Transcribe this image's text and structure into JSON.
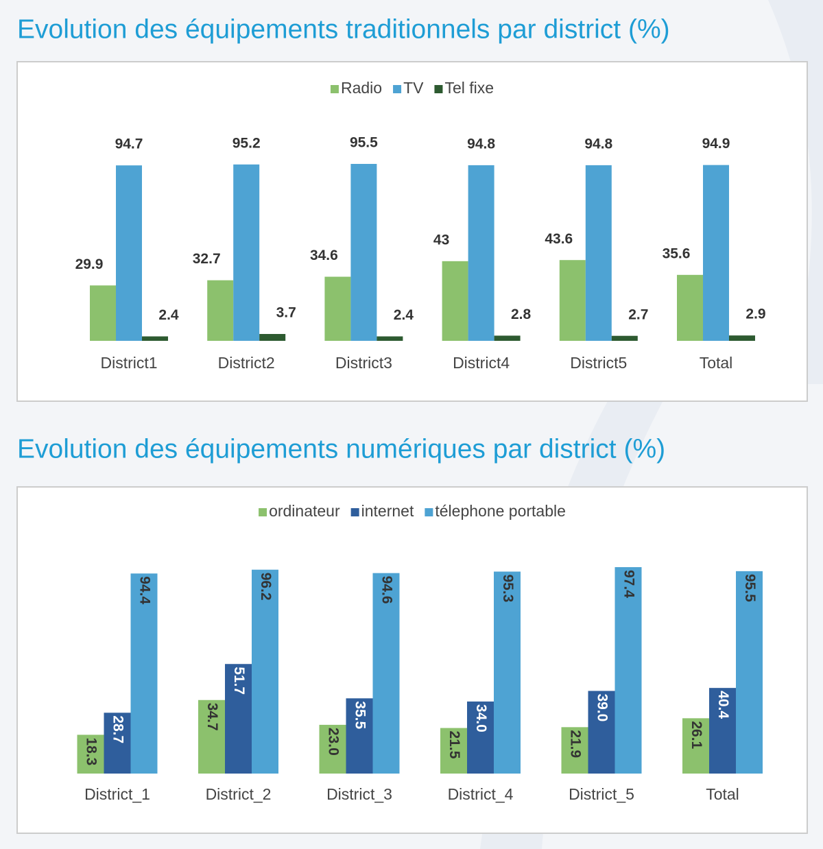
{
  "chart_data": [
    {
      "type": "bar",
      "title": "Evolution des équipements traditionnels par district (%)",
      "categories": [
        "District1",
        "District2",
        "District3",
        "District4",
        "District5",
        "Total"
      ],
      "series": [
        {
          "name": "Radio",
          "color": "#8cc16d",
          "values": [
            29.9,
            32.7,
            34.6,
            43,
            43.6,
            35.6
          ]
        },
        {
          "name": "TV",
          "color": "#4ea3d3",
          "values": [
            94.7,
            95.2,
            95.5,
            94.8,
            94.8,
            94.9
          ]
        },
        {
          "name": "Tel fixe",
          "color": "#2d5a30",
          "values": [
            2.4,
            3.7,
            2.4,
            2.8,
            2.7,
            2.9
          ]
        }
      ]
    },
    {
      "type": "bar",
      "title": "Evolution des équipements numériques par district (%)",
      "categories": [
        "District_1",
        "District_2",
        "District_3",
        "District_4",
        "District_5",
        "Total"
      ],
      "series": [
        {
          "name": "ordinateur",
          "color": "#8cc16d",
          "values": [
            18.3,
            34.7,
            23.0,
            21.5,
            21.9,
            26.1
          ],
          "value_labels": [
            "18.3",
            "34.7",
            "23.0",
            "21.5",
            "21.9",
            "26.1"
          ]
        },
        {
          "name": "internet",
          "color": "#2f5e9c",
          "values": [
            28.7,
            51.7,
            35.5,
            34.0,
            39.0,
            40.4
          ],
          "value_labels": [
            "28.7",
            "51.7",
            "35.5",
            "34.0",
            "39.0",
            "40.4"
          ]
        },
        {
          "name": "télephone portable",
          "color": "#4ea3d3",
          "values": [
            94.4,
            96.2,
            94.6,
            95.3,
            97.4,
            95.5
          ],
          "value_labels": [
            "94.4",
            "96.2",
            "94.6",
            "95.3",
            "97.4",
            "95.5"
          ]
        }
      ]
    }
  ]
}
